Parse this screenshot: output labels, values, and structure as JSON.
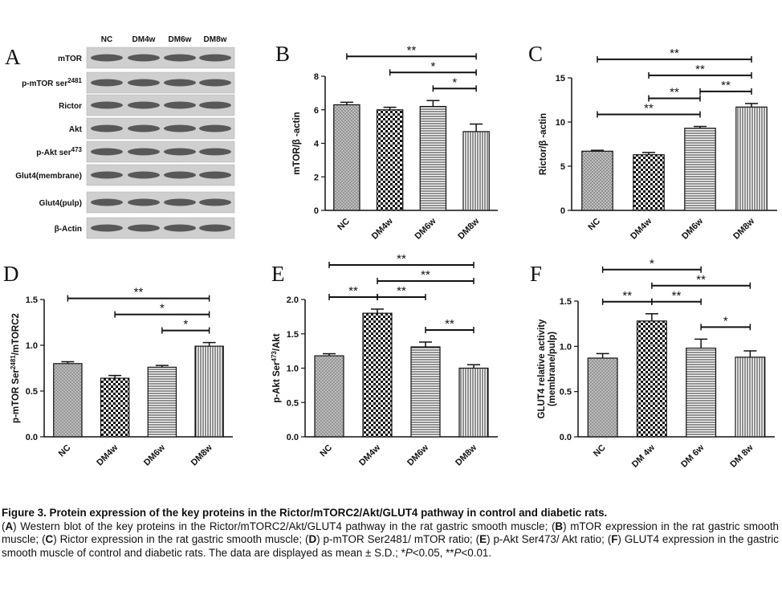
{
  "blot": {
    "panel": "A",
    "lanes": [
      "NC",
      "DM4w",
      "DM6w",
      "DM8w"
    ],
    "rows": [
      "mTOR",
      {
        "main": "p-mTOR ser",
        "superscript": "2481"
      },
      "Rictor",
      "Akt",
      {
        "main": "p-Akt ser",
        "superscript": "473"
      },
      "Glut4(membrane)",
      "Glut4(pulp)",
      "β-Actin"
    ]
  },
  "chart_data": [
    {
      "type": "bar",
      "panel": "B",
      "y_label": "mTOR/β -actin",
      "categories": [
        "NC",
        "DM4w",
        "DM6w",
        "DM8w"
      ],
      "values": [
        6.3,
        6.0,
        6.2,
        4.7
      ],
      "errors": [
        0.15,
        0.15,
        0.35,
        0.45
      ],
      "patterns": [
        "crosshatch",
        "checker",
        "hlines",
        "vlines"
      ],
      "ylim": [
        0,
        8
      ],
      "yticks": [
        0,
        2,
        4,
        6,
        8
      ],
      "significance": [
        {
          "pair": [
            2,
            3
          ],
          "label": "*"
        },
        {
          "pair": [
            1,
            3
          ],
          "label": "*"
        },
        {
          "pair": [
            0,
            3
          ],
          "label": "**"
        }
      ]
    },
    {
      "type": "bar",
      "panel": "C",
      "y_label": "Rictor/β -actin",
      "categories": [
        "NC",
        "DM4w",
        "DM6w",
        "DM8w"
      ],
      "values": [
        6.7,
        6.3,
        9.3,
        11.7
      ],
      "errors": [
        0.1,
        0.25,
        0.2,
        0.4
      ],
      "patterns": [
        "crosshatch",
        "checker",
        "hlines",
        "vlines"
      ],
      "ylim": [
        0,
        15
      ],
      "yticks": [
        0,
        5,
        10,
        15
      ],
      "significance": [
        {
          "pair": [
            0,
            2
          ],
          "label": "**"
        },
        {
          "pair": [
            1,
            2
          ],
          "label": "**"
        },
        {
          "pair": [
            2,
            3
          ],
          "label": "**"
        },
        {
          "pair": [
            1,
            3
          ],
          "label": "**"
        },
        {
          "pair": [
            0,
            3
          ],
          "label": "**"
        }
      ]
    },
    {
      "type": "bar",
      "panel": "D",
      "y_label": {
        "main": "p-mTOR Ser",
        "superscript": "2481",
        "tail": "/mTORC2"
      },
      "categories": [
        "NC",
        "DM4w",
        "DM6w",
        "DM8w"
      ],
      "values": [
        0.8,
        0.64,
        0.76,
        0.99
      ],
      "errors": [
        0.02,
        0.03,
        0.02,
        0.04
      ],
      "patterns": [
        "crosshatch",
        "checker",
        "hlines",
        "vlines"
      ],
      "ylim": [
        0,
        1.5
      ],
      "yticks": [
        {
          "value": 0,
          "label": "0.0"
        },
        {
          "value": 0.5,
          "label": "0.5"
        },
        {
          "value": 1,
          "label": "1.0"
        },
        1.5
      ],
      "significance": [
        {
          "pair": [
            2,
            3
          ],
          "label": "*"
        },
        {
          "pair": [
            1,
            3
          ],
          "label": "*"
        },
        {
          "pair": [
            0,
            3
          ],
          "label": "**"
        }
      ]
    },
    {
      "type": "bar",
      "panel": "E",
      "y_label": {
        "main": "p-Akt Ser",
        "superscript": "473",
        "tail": "/Akt"
      },
      "categories": [
        "NC",
        "DM4w",
        "DM6w",
        "DM8w"
      ],
      "values": [
        1.18,
        1.8,
        1.31,
        1.0
      ],
      "errors": [
        0.03,
        0.06,
        0.07,
        0.05
      ],
      "patterns": [
        "crosshatch",
        "checker",
        "hlines",
        "vlines"
      ],
      "ylim": [
        0,
        2
      ],
      "yticks": [
        {
          "value": 0,
          "label": "0.0"
        },
        {
          "value": 0.5,
          "label": "0.5"
        },
        {
          "value": 1,
          "label": "1.0"
        },
        1.5,
        {
          "value": 2,
          "label": "2.0"
        }
      ],
      "significance": [
        {
          "pair": [
            0,
            1
          ],
          "label": "**"
        },
        {
          "pair": [
            1,
            2
          ],
          "label": "**"
        },
        {
          "pair": [
            2,
            3
          ],
          "label": "**"
        },
        {
          "pair": [
            1,
            3
          ],
          "label": "**"
        },
        {
          "pair": [
            0,
            3
          ],
          "label": "**"
        }
      ]
    },
    {
      "type": "bar",
      "panel": "F",
      "y_label": [
        "GLUT4 relative activity",
        "(membrane/pulp)"
      ],
      "categories": [
        "NC",
        "DM 4w",
        "DM 6w",
        "DM 8w"
      ],
      "values": [
        0.87,
        1.28,
        0.98,
        0.88
      ],
      "errors": [
        0.05,
        0.08,
        0.1,
        0.07
      ],
      "patterns": [
        "crosshatch",
        "checker",
        "hlines",
        "vlines"
      ],
      "ylim": [
        0,
        1.5
      ],
      "yticks": [
        {
          "value": 0,
          "label": "0.0"
        },
        {
          "value": 0.5,
          "label": "0.5"
        },
        {
          "value": 1,
          "label": "1.0"
        },
        1.5
      ],
      "significance": [
        {
          "pair": [
            0,
            1
          ],
          "label": "**"
        },
        {
          "pair": [
            1,
            2
          ],
          "label": "**"
        },
        {
          "pair": [
            2,
            3
          ],
          "label": "*"
        },
        {
          "pair": [
            1,
            3
          ],
          "label": "**"
        },
        {
          "pair": [
            0,
            2
          ],
          "label": "*"
        }
      ]
    }
  ],
  "caption": {
    "title": "Figure 3. Protein expression of the key proteins in the Rictor/mTORC2/Akt/GLUT4 pathway in control and diabetic rats.",
    "body": [
      "(",
      {
        "text": "A",
        "bold": true
      },
      ") Western blot of the key proteins in the Rictor/mTORC2/Akt/GLUT4 pathway in the rat gastric smooth muscle; (",
      {
        "text": "B",
        "bold": true
      },
      ") mTOR expression in the rat gastric smooth muscle; (",
      {
        "text": "C",
        "bold": true
      },
      ") Rictor expression in the rat gastric smooth muscle; (",
      {
        "text": "D",
        "bold": true
      },
      ") p-mTOR Ser2481/ mTOR ratio; (",
      {
        "text": "E",
        "bold": true
      },
      ") p-Akt Ser473/ Akt ratio; (",
      {
        "text": "F",
        "bold": true
      },
      ") GLUT4 expression in the gastric smooth muscle of control and diabetic rats. The data are displayed as mean ± S.D.; *",
      {
        "text": "P",
        "italic": true
      },
      "<0.05, **",
      {
        "text": "P",
        "italic": true
      },
      "<0.01."
    ]
  }
}
